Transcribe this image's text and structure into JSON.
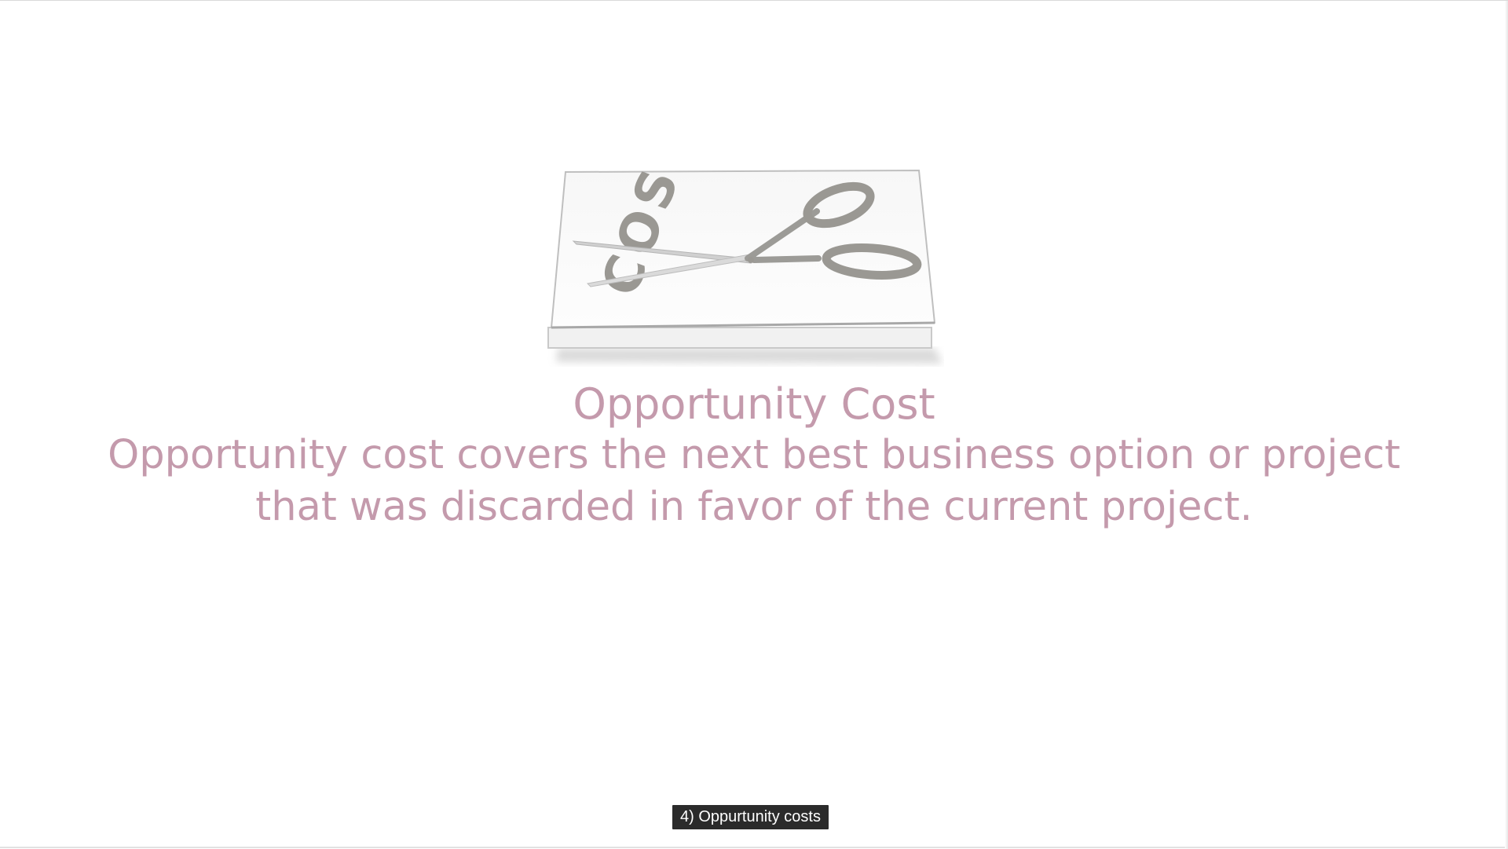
{
  "slide": {
    "title": "Opportunity Cost",
    "description": "Opportunity cost covers the next best business option or project that was discarded in favor of the current project.",
    "illustration": {
      "icon": "cost-cut-scissors-icon",
      "paper_label": "COST"
    },
    "colors": {
      "text": "#c49aac",
      "background": "#ffffff"
    }
  },
  "subtitle": {
    "text": "4) Oppurtunity costs",
    "background": "#2b2b2b",
    "color": "#ffffff"
  }
}
